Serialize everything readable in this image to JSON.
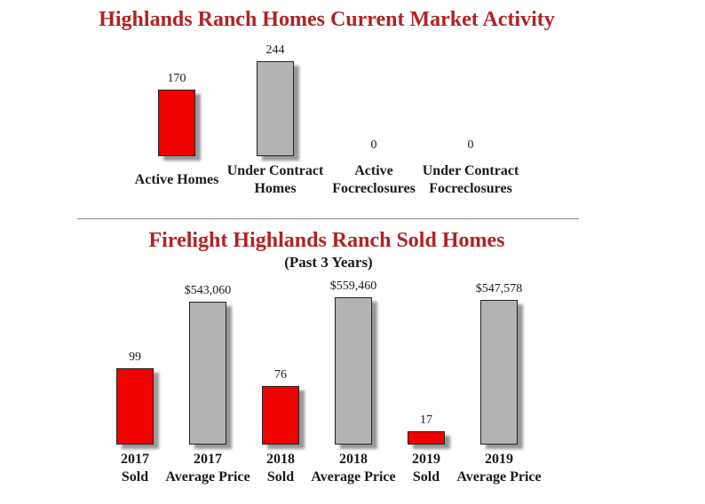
{
  "colors": {
    "title_red": "#B22222",
    "bar_red": "#F10000",
    "bar_gray": "#B3B3B3",
    "bar_border": "#222222",
    "shadow_gray": "#7D7D7D",
    "text_black": "#1A1A1A",
    "divider_gray": "#9A9A9A",
    "background": "#FFFFFF"
  },
  "chart_data": [
    {
      "type": "bar",
      "title": "Highlands Ranch Homes Current Market Activity",
      "categories": [
        "Active Homes",
        "Under Contract Homes",
        "Active Focreclosures",
        "Under Contract Focreclosures"
      ],
      "category_lines": [
        [
          "Active Homes"
        ],
        [
          "Under Contract",
          "Homes"
        ],
        [
          "Active",
          "Focreclosures"
        ],
        [
          "Under Contract",
          "Focreclosures"
        ]
      ],
      "values": [
        170,
        244,
        0,
        0
      ],
      "value_labels": [
        "170",
        "244",
        "0",
        "0"
      ],
      "bar_colors": [
        "red",
        "gray",
        "gray",
        "gray"
      ],
      "scale_groups": [
        "count",
        "count",
        "count",
        "count"
      ],
      "xlabel": "",
      "ylabel": "",
      "ylim": [
        0,
        250
      ],
      "grid": false,
      "legend": false,
      "axes_visible": false
    },
    {
      "type": "bar",
      "title": "Firelight Highlands Ranch Sold Homes",
      "subtitle": "(Past 3 Years)",
      "categories": [
        "2017 Sold",
        "2017 Average Price",
        "2018 Sold",
        "2018 Average Price",
        "2019 Sold",
        "2019 Average Price"
      ],
      "category_lines": [
        [
          "2017",
          "Sold"
        ],
        [
          "2017",
          "Average Price"
        ],
        [
          "2018",
          "Sold"
        ],
        [
          "2018",
          "Average Price"
        ],
        [
          "2019",
          "Sold"
        ],
        [
          "2019",
          "Average Price"
        ]
      ],
      "values": [
        99,
        543060,
        76,
        559460,
        17,
        547578
      ],
      "value_labels": [
        "99",
        "$543,060",
        "76",
        "$559,460",
        "17",
        "$547,578"
      ],
      "bar_colors": [
        "red",
        "gray",
        "red",
        "gray",
        "red",
        "gray"
      ],
      "scale_groups": [
        "sold",
        "price",
        "sold",
        "price",
        "sold",
        "price"
      ],
      "series": [
        {
          "name": "Homes Sold",
          "x": [
            "2017",
            "2018",
            "2019"
          ],
          "values": [
            99,
            76,
            17
          ]
        },
        {
          "name": "Average Price",
          "x": [
            "2017",
            "2018",
            "2019"
          ],
          "values": [
            543060,
            559460,
            547578
          ]
        }
      ],
      "xlabel": "",
      "ylabel": "",
      "grid": false,
      "legend": false,
      "axes_visible": false
    }
  ]
}
